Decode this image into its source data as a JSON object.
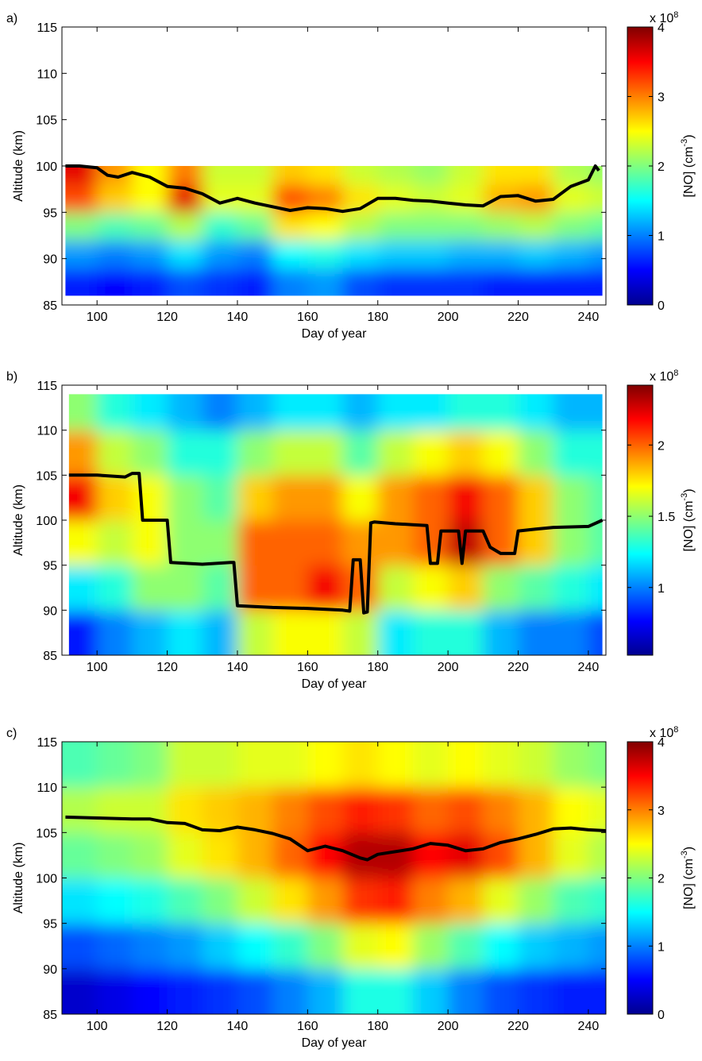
{
  "chart_data": [
    {
      "type": "contour",
      "panel_label": "a)",
      "xlabel": "Day of year",
      "ylabel": "Altitude (km)",
      "xlim": [
        90,
        245
      ],
      "ylim": [
        85,
        115
      ],
      "xticks": [
        100,
        120,
        140,
        160,
        180,
        200,
        220,
        240
      ],
      "yticks": [
        85,
        90,
        95,
        100,
        105,
        110,
        115
      ],
      "colormap": "jet",
      "clim": [
        0,
        4
      ],
      "cticks": [
        0,
        1,
        2,
        3,
        4
      ],
      "colorbar_label": [
        "[NO] (cm",
        "-3",
        ")"
      ],
      "colorbar_multiplier": [
        "x 10",
        "8"
      ],
      "z_x_edges": [
        91,
        100,
        110,
        120,
        130,
        140,
        150,
        160,
        170,
        180,
        190,
        200,
        210,
        220,
        230,
        240,
        244
      ],
      "z_y_edges": [
        86,
        89,
        92,
        95,
        98,
        100
      ],
      "z": [
        [
          0.6,
          0.5,
          0.6,
          0.8,
          0.7,
          0.6,
          1.0,
          1.1,
          0.8,
          0.7,
          0.7,
          0.7,
          0.6,
          0.6,
          0.6,
          0.6
        ],
        [
          1.1,
          1.0,
          1.1,
          1.4,
          1.1,
          1.0,
          1.5,
          1.6,
          1.4,
          1.3,
          1.3,
          1.2,
          1.2,
          1.3,
          1.2,
          1.1
        ],
        [
          2.0,
          1.8,
          1.9,
          2.2,
          1.7,
          1.9,
          2.6,
          2.5,
          2.2,
          2.0,
          2.0,
          2.0,
          2.1,
          2.2,
          2.0,
          1.9
        ],
        [
          3.2,
          2.7,
          2.5,
          3.6,
          2.4,
          2.4,
          3.2,
          3.0,
          2.6,
          2.4,
          2.3,
          2.4,
          2.8,
          2.9,
          2.4,
          2.3
        ],
        [
          3.6,
          2.9,
          2.5,
          3.0,
          2.3,
          2.3,
          2.7,
          2.6,
          2.3,
          2.2,
          2.1,
          2.3,
          2.6,
          2.6,
          2.2,
          2.1
        ]
      ],
      "series": [
        {
          "color": "#000000",
          "x": [
            91,
            95,
            100,
            103,
            106,
            110,
            115,
            120,
            125,
            130,
            135,
            140,
            145,
            150,
            155,
            160,
            165,
            170,
            175,
            180,
            185,
            190,
            195,
            200,
            205,
            210,
            215,
            220,
            225,
            230,
            235,
            240,
            242,
            243
          ],
          "values": [
            100,
            100,
            99.8,
            99,
            98.8,
            99.3,
            98.8,
            97.8,
            97.6,
            97,
            96,
            96.5,
            96,
            95.6,
            95.2,
            95.5,
            95.4,
            95.1,
            95.4,
            96.5,
            96.5,
            96.3,
            96.2,
            96,
            95.8,
            95.7,
            96.7,
            96.8,
            96.2,
            96.4,
            97.8,
            98.5,
            100,
            99.5
          ]
        }
      ]
    },
    {
      "type": "contour",
      "panel_label": "b)",
      "xlabel": "Day of year",
      "ylabel": "Altitude (km)",
      "xlim": [
        90,
        245
      ],
      "ylim": [
        85,
        115
      ],
      "xticks": [
        100,
        120,
        140,
        160,
        180,
        200,
        220,
        240
      ],
      "yticks": [
        85,
        90,
        95,
        100,
        105,
        110,
        115
      ],
      "colormap": "jet",
      "clim": [
        0.525,
        2.42
      ],
      "cticks": [
        1,
        1.5,
        2
      ],
      "colorbar_label": [
        "[NO] (cm",
        "-3",
        ")"
      ],
      "colorbar_multiplier": [
        "x 10",
        "8"
      ],
      "z_x_edges": [
        92,
        100,
        110,
        120,
        130,
        140,
        150,
        160,
        170,
        180,
        190,
        200,
        210,
        220,
        230,
        240,
        244
      ],
      "z_y_edges": [
        85,
        90,
        95,
        100,
        105,
        110,
        114
      ],
      "z": [
        [
          0.8,
          1.0,
          1.1,
          1.2,
          1.1,
          1.6,
          1.7,
          1.7,
          1.6,
          1.2,
          1.3,
          1.3,
          1.1,
          1.0,
          1.0,
          0.9
        ],
        [
          1.2,
          1.3,
          1.5,
          1.5,
          1.4,
          2.0,
          2.0,
          2.2,
          2.0,
          1.6,
          1.7,
          1.8,
          1.5,
          1.4,
          1.3,
          1.2
        ],
        [
          1.7,
          1.6,
          1.7,
          1.5,
          1.5,
          2.0,
          2.0,
          2.0,
          1.9,
          1.9,
          2.0,
          2.3,
          2.0,
          1.8,
          1.5,
          1.4
        ],
        [
          2.2,
          1.8,
          1.7,
          1.5,
          1.4,
          1.8,
          1.9,
          1.9,
          1.7,
          1.9,
          2.0,
          2.2,
          2.0,
          1.8,
          1.5,
          1.4
        ],
        [
          1.9,
          1.6,
          1.5,
          1.3,
          1.3,
          1.5,
          1.6,
          1.6,
          1.4,
          1.6,
          1.7,
          1.8,
          1.7,
          1.5,
          1.3,
          1.3
        ],
        [
          1.5,
          1.3,
          1.2,
          1.1,
          1.0,
          1.1,
          1.2,
          1.2,
          1.1,
          1.2,
          1.2,
          1.3,
          1.3,
          1.2,
          1.1,
          1.1
        ]
      ],
      "series": [
        {
          "color": "#000000",
          "x": [
            92,
            100,
            108,
            110,
            112,
            113,
            120,
            121,
            130,
            138,
            139,
            140,
            150,
            160,
            170,
            172,
            173,
            175,
            176,
            177,
            178,
            179,
            185,
            190,
            194,
            195,
            197,
            198,
            200,
            203,
            204,
            205,
            206,
            210,
            212,
            215,
            219,
            220,
            225,
            230,
            240,
            244
          ],
          "values": [
            105,
            105,
            104.8,
            105.2,
            105.2,
            100,
            100,
            95.3,
            95.1,
            95.3,
            95.3,
            90.5,
            90.3,
            90.2,
            90,
            89.9,
            95.6,
            95.6,
            89.7,
            89.8,
            99.7,
            99.8,
            99.6,
            99.5,
            99.4,
            95.2,
            95.2,
            98.8,
            98.8,
            98.8,
            95.2,
            98.8,
            98.8,
            98.8,
            97,
            96.3,
            96.3,
            98.8,
            99,
            99.2,
            99.3,
            100
          ]
        }
      ]
    },
    {
      "type": "contour",
      "panel_label": "c)",
      "xlabel": "Day of year",
      "ylabel": "Altitude (km)",
      "xlim": [
        90,
        245
      ],
      "ylim": [
        85,
        115
      ],
      "xticks": [
        100,
        120,
        140,
        160,
        180,
        200,
        220,
        240
      ],
      "yticks": [
        85,
        90,
        95,
        100,
        105,
        110,
        115
      ],
      "colormap": "jet",
      "clim": [
        0,
        4
      ],
      "cticks": [
        0,
        1,
        2,
        3,
        4
      ],
      "colorbar_label": [
        "[NO] (cm",
        "-3",
        ")"
      ],
      "colorbar_multiplier": [
        "x 10",
        "8"
      ],
      "z_x_edges": [
        90,
        100,
        110,
        120,
        130,
        140,
        150,
        160,
        170,
        180,
        190,
        200,
        210,
        220,
        230,
        240,
        245
      ],
      "z_y_edges": [
        85,
        90,
        95,
        100,
        105,
        110,
        115
      ],
      "z": [
        [
          0.3,
          0.4,
          0.5,
          0.6,
          0.7,
          0.8,
          1.0,
          1.2,
          1.6,
          1.6,
          1.3,
          1.0,
          0.8,
          0.7,
          0.6,
          0.6
        ],
        [
          0.8,
          0.9,
          1.0,
          1.1,
          1.3,
          1.5,
          1.7,
          2.0,
          2.4,
          2.5,
          2.1,
          1.8,
          1.5,
          1.3,
          1.2,
          1.1
        ],
        [
          1.4,
          1.5,
          1.6,
          1.8,
          2.0,
          2.3,
          2.6,
          2.9,
          3.3,
          3.4,
          3.0,
          2.8,
          2.4,
          2.1,
          1.8,
          1.7
        ],
        [
          1.9,
          2.0,
          2.1,
          2.4,
          2.6,
          2.8,
          3.1,
          3.5,
          3.8,
          3.8,
          3.5,
          3.6,
          3.2,
          2.8,
          2.4,
          2.2
        ],
        [
          2.2,
          2.3,
          2.3,
          2.6,
          2.7,
          2.8,
          3.0,
          3.2,
          3.4,
          3.3,
          3.1,
          3.2,
          3.0,
          2.8,
          2.5,
          2.4
        ],
        [
          1.8,
          1.9,
          2.0,
          2.3,
          2.3,
          2.4,
          2.4,
          2.5,
          2.6,
          2.5,
          2.4,
          2.5,
          2.4,
          2.3,
          2.1,
          2.0
        ]
      ],
      "series": [
        {
          "color": "#000000",
          "x": [
            91,
            100,
            110,
            115,
            120,
            125,
            130,
            135,
            140,
            145,
            150,
            155,
            160,
            165,
            170,
            175,
            177,
            180,
            190,
            195,
            200,
            205,
            210,
            215,
            220,
            225,
            230,
            235,
            240,
            245
          ],
          "values": [
            106.7,
            106.6,
            106.5,
            106.5,
            106.1,
            106,
            105.3,
            105.2,
            105.6,
            105.3,
            104.9,
            104.3,
            103,
            103.5,
            103,
            102.2,
            102,
            102.6,
            103.2,
            103.8,
            103.6,
            103,
            103.2,
            103.9,
            104.3,
            104.8,
            105.4,
            105.5,
            105.3,
            105.2
          ]
        }
      ]
    }
  ]
}
